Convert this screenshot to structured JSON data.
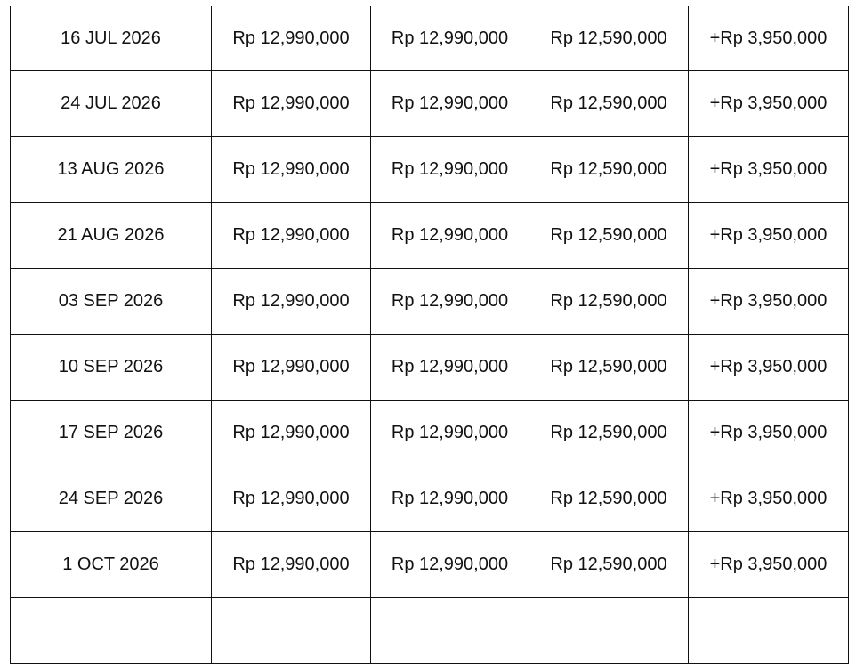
{
  "table": {
    "rows": [
      {
        "date": "16 JUL 2026",
        "p1": "Rp 12,990,000",
        "p2": "Rp 12,990,000",
        "p3": "Rp 12,590,000",
        "extra": "+Rp 3,950,000"
      },
      {
        "date": "24 JUL 2026",
        "p1": "Rp 12,990,000",
        "p2": "Rp 12,990,000",
        "p3": "Rp 12,590,000",
        "extra": "+Rp 3,950,000"
      },
      {
        "date": "13 AUG 2026",
        "p1": "Rp 12,990,000",
        "p2": "Rp 12,990,000",
        "p3": "Rp 12,590,000",
        "extra": "+Rp 3,950,000"
      },
      {
        "date": "21 AUG 2026",
        "p1": "Rp 12,990,000",
        "p2": "Rp 12,990,000",
        "p3": "Rp 12,590,000",
        "extra": "+Rp 3,950,000"
      },
      {
        "date": "03 SEP 2026",
        "p1": "Rp 12,990,000",
        "p2": "Rp 12,990,000",
        "p3": "Rp 12,590,000",
        "extra": "+Rp 3,950,000"
      },
      {
        "date": "10 SEP 2026",
        "p1": "Rp 12,990,000",
        "p2": "Rp 12,990,000",
        "p3": "Rp 12,590,000",
        "extra": "+Rp 3,950,000"
      },
      {
        "date": "17 SEP 2026",
        "p1": "Rp 12,990,000",
        "p2": "Rp 12,990,000",
        "p3": "Rp 12,590,000",
        "extra": "+Rp 3,950,000"
      },
      {
        "date": "24 SEP 2026",
        "p1": "Rp 12,990,000",
        "p2": "Rp 12,990,000",
        "p3": "Rp 12,590,000",
        "extra": "+Rp 3,950,000"
      },
      {
        "date": "1 OCT 2026",
        "p1": "Rp 12,990,000",
        "p2": "Rp 12,990,000",
        "p3": "Rp 12,590,000",
        "extra": "+Rp 3,950,000"
      }
    ]
  }
}
